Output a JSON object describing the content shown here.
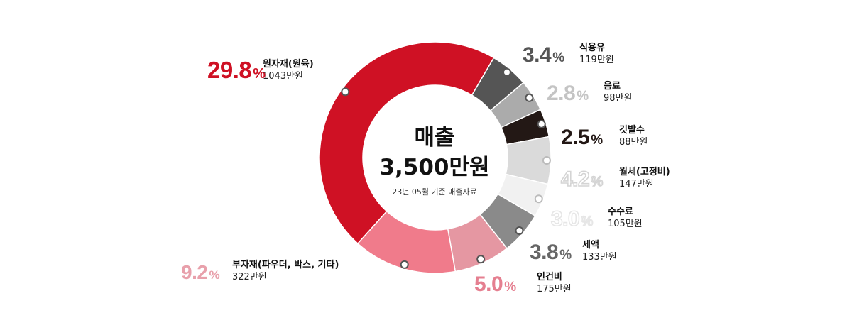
{
  "chart_data": {
    "type": "pie",
    "center": {
      "title": "매출",
      "total": "3,500만원",
      "subtitle": "23년 05월 기준 매출자료"
    },
    "slices": [
      {
        "name": "원자재(원육)",
        "percent": 29.8,
        "percent_label": "29.8",
        "amount": "1043만원",
        "color": "#cf1124",
        "pct_color": "#cf1124",
        "outline": false
      },
      {
        "name": "식용유",
        "percent": 3.4,
        "percent_label": "3.4",
        "amount": "119만원",
        "color": "#555555",
        "pct_color": "#555555",
        "outline": false
      },
      {
        "name": "음료",
        "percent": 2.8,
        "percent_label": "2.8",
        "amount": "98만원",
        "color": "#ababab",
        "pct_color": "#c4c4c4",
        "outline": false
      },
      {
        "name": "깃발수",
        "percent": 2.5,
        "percent_label": "2.5",
        "amount": "88만원",
        "color": "#231815",
        "pct_color": "#231815",
        "outline": false
      },
      {
        "name": "월세(고정비)",
        "percent": 4.2,
        "percent_label": "4.2",
        "amount": "147만원",
        "color": "#dadada",
        "pct_color": "#d4d4d4",
        "outline": true
      },
      {
        "name": "수수료",
        "percent": 3.0,
        "percent_label": "3.0",
        "amount": "105만원",
        "color": "#f1f1f1",
        "pct_color": "#e6e6e6",
        "outline": true
      },
      {
        "name": "세액",
        "percent": 3.8,
        "percent_label": "3.8",
        "amount": "133만원",
        "color": "#8a8a8a",
        "pct_color": "#666666",
        "outline": false
      },
      {
        "name": "인건비",
        "percent": 5.0,
        "percent_label": "5.0",
        "amount": "175만원",
        "color": "#e597a2",
        "pct_color": "#e57f90",
        "outline": false
      },
      {
        "name": "부자재(파우더, 박스, 기타)",
        "percent": 9.2,
        "percent_label": "9.2",
        "amount": "322만원",
        "color": "#f07b8b",
        "pct_color": "#e8a0ab",
        "outline": false
      }
    ],
    "percent_suffix": "%"
  }
}
